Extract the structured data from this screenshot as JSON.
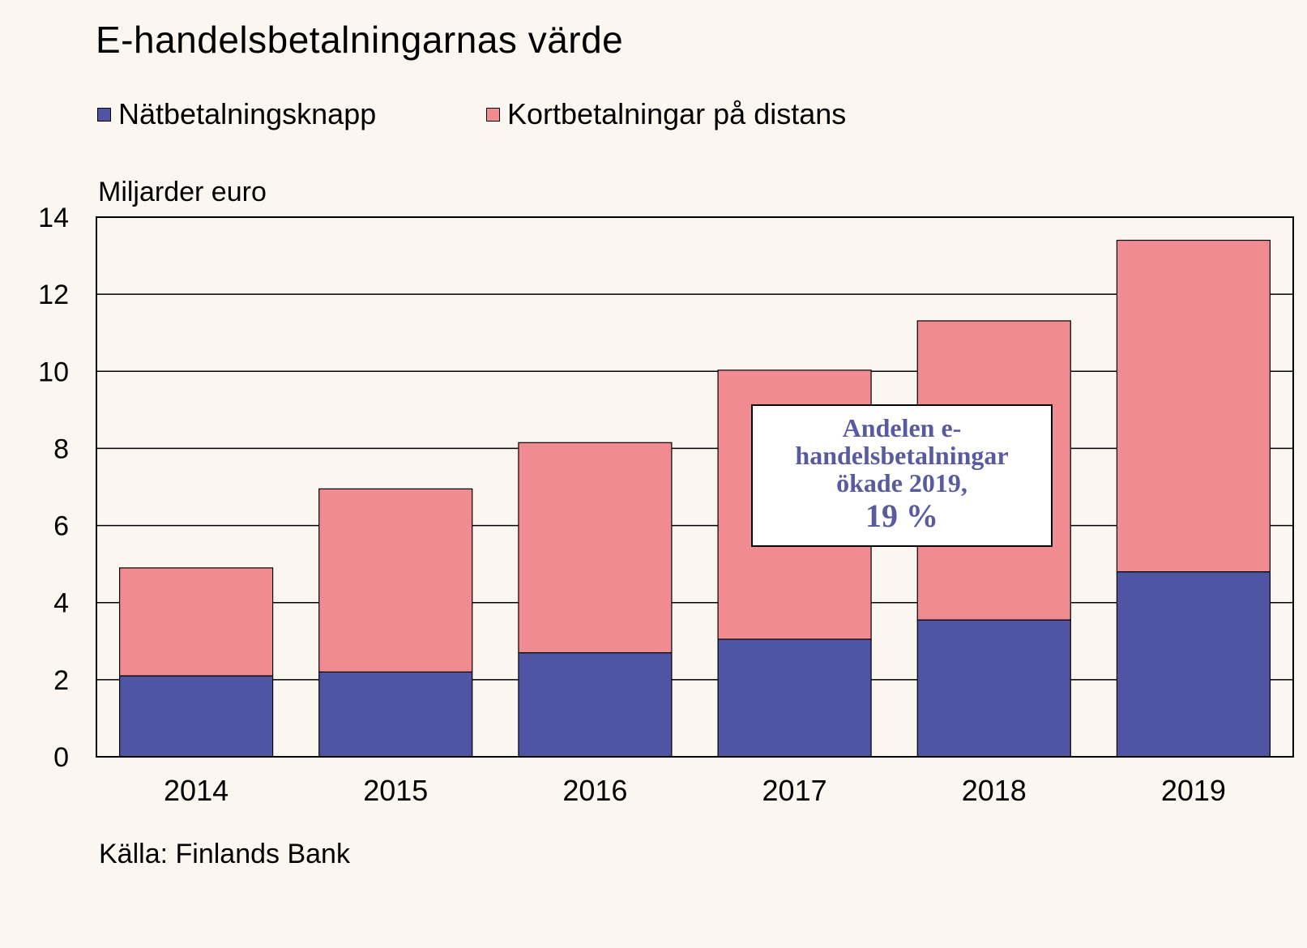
{
  "chart_data": {
    "type": "bar",
    "stacked": true,
    "title": "E-handelsbetalningarnas  värde",
    "unit_label": "Miljarder euro",
    "source": "Källa: Finlands Bank",
    "categories": [
      "2014",
      "2015",
      "2016",
      "2017",
      "2018",
      "2019"
    ],
    "series": [
      {
        "name": "Nätbetalningsknapp",
        "color": "#4f55a3",
        "values": [
          2.1,
          2.2,
          2.7,
          3.05,
          3.55,
          4.8
        ]
      },
      {
        "name": "Kortbetalningar på distans",
        "color": "#f08c91",
        "values": [
          2.8,
          4.75,
          5.45,
          6.98,
          7.76,
          8.6
        ]
      }
    ],
    "ylim": [
      0,
      14
    ],
    "yticks": [
      "0",
      "2",
      "4",
      "6",
      "8",
      "10",
      "12",
      "14"
    ],
    "grid": true,
    "legend_position": "top-left",
    "annotation": {
      "lines": [
        "Andelen e-",
        "handelsbetalningar",
        "ökade 2019,"
      ],
      "highlight": "19 %"
    }
  }
}
